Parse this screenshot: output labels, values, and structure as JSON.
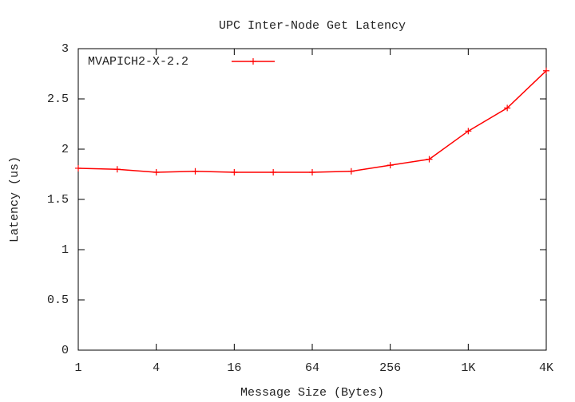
{
  "chart_data": {
    "type": "line",
    "title": "UPC Inter-Node Get Latency",
    "x_label": "Message Size (Bytes)",
    "y_label": "Latency (us)",
    "categories": [
      "1",
      null,
      "4",
      null,
      "16",
      null,
      "64",
      null,
      "256",
      null,
      "1K",
      null,
      "4K"
    ],
    "series": [
      {
        "name": "MVAPICH2-X-2.2",
        "color": "#ff0000",
        "values": [
          1.81,
          1.8,
          1.77,
          1.78,
          1.77,
          1.77,
          1.77,
          1.78,
          1.84,
          1.9,
          2.18,
          2.41,
          2.78
        ]
      }
    ],
    "ylim": [
      0,
      3
    ],
    "yticks": [
      0,
      0.5,
      1,
      1.5,
      2,
      2.5,
      3
    ],
    "legend": "top-left"
  }
}
